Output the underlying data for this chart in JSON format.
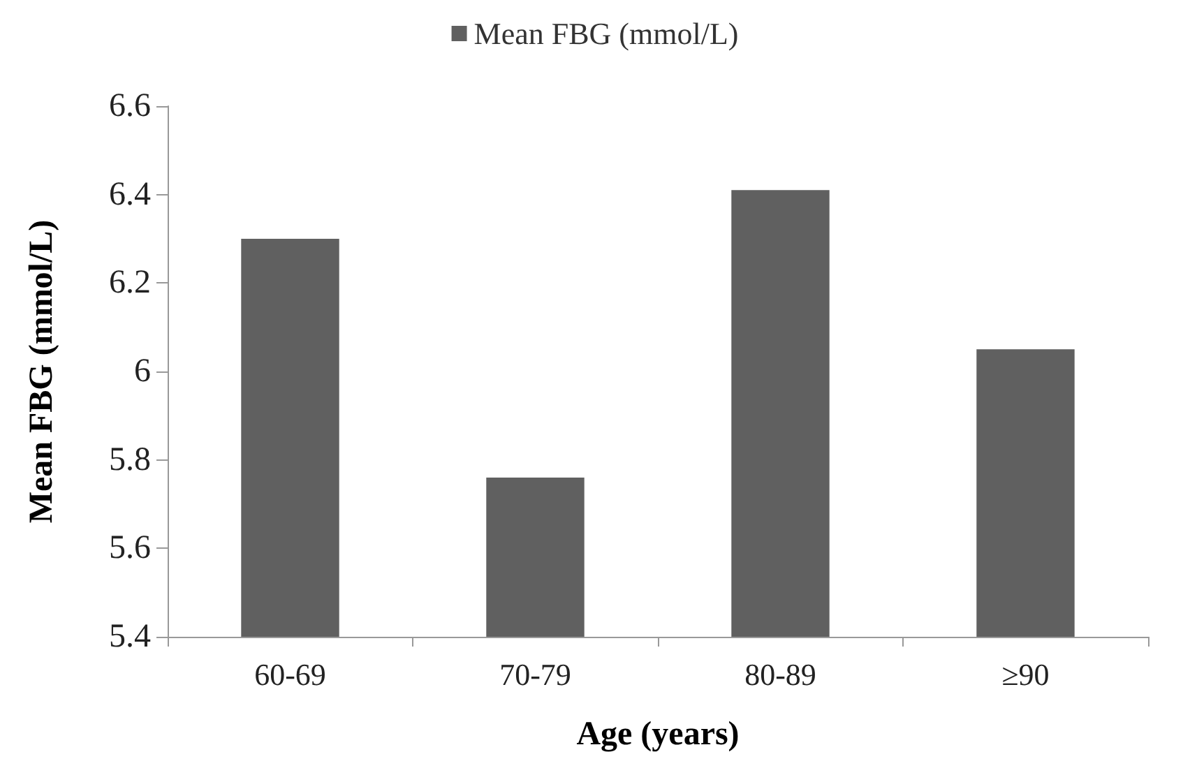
{
  "chart_data": {
    "type": "bar",
    "xlabel": "Age (years)",
    "ylabel": "Mean FBG (mmol/L)",
    "categories": [
      "60-69",
      "70-79",
      "80-89",
      "≥90"
    ],
    "series": [
      {
        "name": "Mean FBG (mmol/L)",
        "color": "#606060",
        "values": [
          6.3,
          5.76,
          6.41,
          6.05
        ]
      }
    ],
    "ylim": [
      5.4,
      6.6
    ],
    "yticks": [
      5.4,
      5.6,
      5.8,
      6,
      6.2,
      6.4,
      6.6
    ],
    "grid": false,
    "legend": "top"
  }
}
